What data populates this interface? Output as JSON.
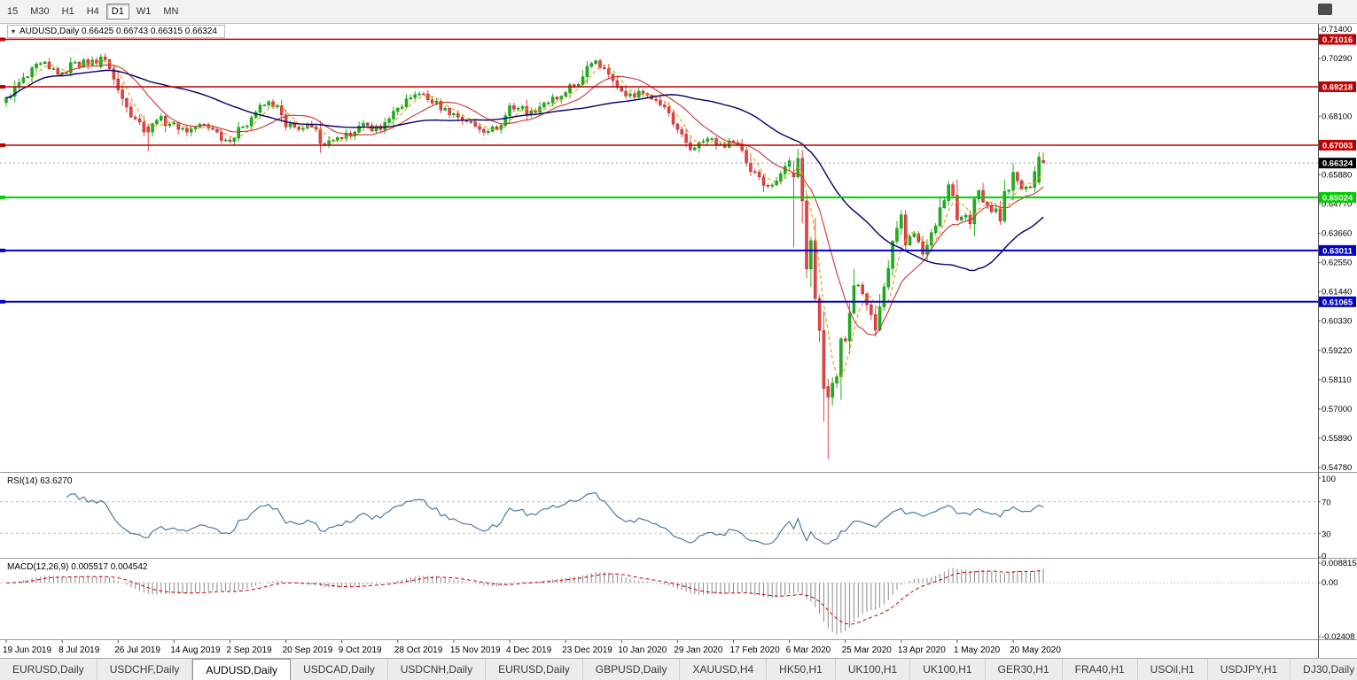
{
  "toolbar": {
    "timeframes": [
      {
        "label": "15",
        "active": false
      },
      {
        "label": "M30",
        "active": false
      },
      {
        "label": "H1",
        "active": false
      },
      {
        "label": "H4",
        "active": false
      },
      {
        "label": "D1",
        "active": true
      },
      {
        "label": "W1",
        "active": false
      },
      {
        "label": "MN",
        "active": false
      }
    ]
  },
  "chart": {
    "title": "AUDUSD,Daily  0.66425 0.66743 0.66315 0.66324"
  },
  "chart_data": {
    "type": "candlestick",
    "symbol": "AUDUSD",
    "timeframe": "Daily",
    "ohlc_current": {
      "open": "0.66425",
      "high": "0.66743",
      "low": "0.66315",
      "close": "0.66324"
    },
    "num_candles": 242,
    "price_axis": {
      "min": 0.5478,
      "max": 0.714,
      "ticks": [
        "0.71400",
        "0.70290",
        "0.68100",
        "0.65880",
        "0.64770",
        "0.63660",
        "0.62550",
        "0.61440",
        "0.60330",
        "0.59220",
        "0.58110",
        "0.57000",
        "0.55890",
        "0.54780"
      ]
    },
    "levels": [
      {
        "price": 0.71016,
        "label": "0.71016",
        "color": "#c00000",
        "width": 1.5
      },
      {
        "price": 0.69218,
        "label": "0.69218",
        "color": "#c00000",
        "width": 1.5
      },
      {
        "price": 0.67003,
        "label": "0.67003",
        "color": "#c00000",
        "width": 1.5
      },
      {
        "price": 0.65024,
        "label": "0.65024",
        "color": "#00cc00",
        "width": 2
      },
      {
        "price": 0.63011,
        "label": "0.63011",
        "color": "#0000cc",
        "width": 2
      },
      {
        "price": 0.61065,
        "label": "0.61065",
        "color": "#0000cc",
        "width": 2
      }
    ],
    "current_price": {
      "value": 0.66324,
      "label": "0.66324"
    },
    "colors": {
      "up": "#0d8a0d",
      "up_fill": "#1cb21c",
      "down": "#b02020",
      "down_fill": "#e54545"
    },
    "moving_averages": [
      {
        "period": 5,
        "color": "#e0a000",
        "dash": "4,3",
        "width": 1.1
      },
      {
        "period": 13,
        "color": "#cc3333",
        "width": 1.1
      },
      {
        "period": 40,
        "color": "#00006b",
        "width": 1.4
      }
    ],
    "close_anchors": [
      [
        0,
        0.688
      ],
      [
        2,
        0.692
      ],
      [
        5,
        0.696
      ],
      [
        8,
        0.701
      ],
      [
        10,
        0.699
      ],
      [
        13,
        0.6975
      ],
      [
        16,
        0.7015
      ],
      [
        19,
        0.7005
      ],
      [
        22,
        0.7035
      ],
      [
        24,
        0.699
      ],
      [
        26,
        0.691
      ],
      [
        28,
        0.6845
      ],
      [
        30,
        0.68
      ],
      [
        33,
        0.675
      ],
      [
        35,
        0.6795
      ],
      [
        39,
        0.6785
      ],
      [
        42,
        0.675
      ],
      [
        45,
        0.678
      ],
      [
        48,
        0.676
      ],
      [
        51,
        0.672
      ],
      [
        52,
        0.6715
      ],
      [
        55,
        0.677
      ],
      [
        58,
        0.6825
      ],
      [
        61,
        0.6865
      ],
      [
        63,
        0.685
      ],
      [
        65,
        0.677
      ],
      [
        68,
        0.676
      ],
      [
        71,
        0.677
      ],
      [
        74,
        0.67
      ],
      [
        76,
        0.672
      ],
      [
        78,
        0.6725
      ],
      [
        81,
        0.675
      ],
      [
        84,
        0.6775
      ],
      [
        87,
        0.676
      ],
      [
        89,
        0.68
      ],
      [
        91,
        0.684
      ],
      [
        94,
        0.688
      ],
      [
        96,
        0.6895
      ],
      [
        99,
        0.686
      ],
      [
        102,
        0.684
      ],
      [
        104,
        0.682
      ],
      [
        107,
        0.679
      ],
      [
        110,
        0.676
      ],
      [
        113,
        0.677
      ],
      [
        115,
        0.6775
      ],
      [
        117,
        0.685
      ],
      [
        119,
        0.684
      ],
      [
        122,
        0.683
      ],
      [
        125,
        0.686
      ],
      [
        128,
        0.6875
      ],
      [
        130,
        0.69
      ],
      [
        132,
        0.6925
      ],
      [
        134,
        0.696
      ],
      [
        136,
        0.701
      ],
      [
        137,
        0.702
      ],
      [
        139,
        0.699
      ],
      [
        141,
        0.6945
      ],
      [
        143,
        0.6905
      ],
      [
        145,
        0.6895
      ],
      [
        147,
        0.6905
      ],
      [
        149,
        0.689
      ],
      [
        151,
        0.687
      ],
      [
        153,
        0.6845
      ],
      [
        156,
        0.676
      ],
      [
        158,
        0.671
      ],
      [
        160,
        0.669
      ],
      [
        162,
        0.6715
      ],
      [
        164,
        0.6725
      ],
      [
        166,
        0.6705
      ],
      [
        169,
        0.671
      ],
      [
        171,
        0.668
      ],
      [
        173,
        0.66
      ],
      [
        175,
        0.658
      ],
      [
        177,
        0.6545
      ],
      [
        179,
        0.6565
      ],
      [
        181,
        0.662
      ],
      [
        182,
        0.6641
      ],
      [
        183,
        0.658
      ],
      [
        184,
        0.665
      ],
      [
        185,
        0.6489
      ],
      [
        186,
        0.6231
      ],
      [
        187,
        0.6338
      ],
      [
        188,
        0.6119
      ],
      [
        189,
        0.5998
      ],
      [
        190,
        0.5778
      ],
      [
        191,
        0.5745
      ],
      [
        192,
        0.5798
      ],
      [
        193,
        0.5822
      ],
      [
        194,
        0.5966
      ],
      [
        195,
        0.5958
      ],
      [
        196,
        0.6063
      ],
      [
        197,
        0.6167
      ],
      [
        198,
        0.617
      ],
      [
        199,
        0.6137
      ],
      [
        200,
        0.6095
      ],
      [
        201,
        0.6058
      ],
      [
        202,
        0.5999
      ],
      [
        203,
        0.6087
      ],
      [
        204,
        0.6163
      ],
      [
        205,
        0.6233
      ],
      [
        206,
        0.6336
      ],
      [
        207,
        0.6385
      ],
      [
        208,
        0.6436
      ],
      [
        209,
        0.6322
      ],
      [
        210,
        0.6353
      ],
      [
        211,
        0.6365
      ],
      [
        212,
        0.6334
      ],
      [
        213,
        0.6287
      ],
      [
        214,
        0.6321
      ],
      [
        215,
        0.6369
      ],
      [
        216,
        0.6394
      ],
      [
        217,
        0.6463
      ],
      [
        218,
        0.649
      ],
      [
        219,
        0.655
      ],
      [
        220,
        0.651
      ],
      [
        221,
        0.6417
      ],
      [
        222,
        0.6428
      ],
      [
        223,
        0.6434
      ],
      [
        224,
        0.6402
      ],
      [
        225,
        0.6496
      ],
      [
        226,
        0.6528
      ],
      [
        227,
        0.6485
      ],
      [
        228,
        0.6472
      ],
      [
        229,
        0.6448
      ],
      [
        230,
        0.6459
      ],
      [
        231,
        0.6413
      ],
      [
        232,
        0.6525
      ],
      [
        233,
        0.653
      ],
      [
        234,
        0.6597
      ],
      [
        235,
        0.6565
      ],
      [
        236,
        0.6535
      ],
      [
        237,
        0.6542
      ],
      [
        238,
        0.654
      ],
      [
        239,
        0.66
      ],
      [
        240,
        0.6655
      ],
      [
        241,
        0.66324
      ]
    ],
    "special_candles": {
      "22": [
        0.6998,
        0.7046,
        0.699,
        0.7035
      ],
      "33": [
        0.677,
        0.6778,
        0.6677,
        0.675
      ],
      "183": [
        0.6595,
        0.6641,
        0.6313,
        0.658
      ],
      "191": [
        0.5785,
        0.5815,
        0.551,
        0.5745
      ],
      "240": [
        0.656,
        0.6675,
        0.655,
        0.6655
      ],
      "241": [
        0.66425,
        0.66743,
        0.66315,
        0.66324
      ]
    },
    "x_axis": {
      "labels": [
        {
          "text": "19 Jun 2019",
          "idx": 0
        },
        {
          "text": "8 Jul 2019",
          "idx": 13
        },
        {
          "text": "26 Jul 2019",
          "idx": 26
        },
        {
          "text": "14 Aug 2019",
          "idx": 39
        },
        {
          "text": "2 Sep 2019",
          "idx": 52
        },
        {
          "text": "20 Sep 2019",
          "idx": 65
        },
        {
          "text": "9 Oct 2019",
          "idx": 78
        },
        {
          "text": "28 Oct 2019",
          "idx": 91
        },
        {
          "text": "15 Nov 2019",
          "idx": 104
        },
        {
          "text": "4 Dec 2019",
          "idx": 117
        },
        {
          "text": "23 Dec 2019",
          "idx": 130
        },
        {
          "text": "10 Jan 2020",
          "idx": 143
        },
        {
          "text": "29 Jan 2020",
          "idx": 156
        },
        {
          "text": "17 Feb 2020",
          "idx": 169
        },
        {
          "text": "6 Mar 2020",
          "idx": 182
        },
        {
          "text": "25 Mar 2020",
          "idx": 195
        },
        {
          "text": "13 Apr 2020",
          "idx": 208
        },
        {
          "text": "1 May 2020",
          "idx": 221
        },
        {
          "text": "20 May 2020",
          "idx": 234
        }
      ]
    },
    "rsi": {
      "label": "RSI(14) 63.6270",
      "period": 14,
      "value": 63.627,
      "line_color": "#3b6fa0",
      "levels": [
        100,
        70,
        30,
        0
      ],
      "axis_labels": [
        "100",
        "70",
        "30",
        "0"
      ]
    },
    "macd": {
      "label": "MACD(12,26,9) 0.005517 0.004542",
      "fast": 12,
      "slow": 26,
      "signal": 9,
      "value_macd": 0.005517,
      "value_signal": 0.004542,
      "max": 0.008815,
      "min": -0.02408,
      "axis_values": [
        {
          "v": 0.008815,
          "label": "0.008815"
        },
        {
          "v": 0,
          "label": "0.00"
        },
        {
          "v": -0.02408,
          "label": "-0.02408"
        }
      ]
    }
  },
  "tabs": {
    "items": [
      {
        "label": "EURUSD,Daily",
        "active": false
      },
      {
        "label": "USDCHF,Daily",
        "active": false
      },
      {
        "label": "AUDUSD,Daily",
        "active": true
      },
      {
        "label": "USDCAD,Daily",
        "active": false
      },
      {
        "label": "USDCNH,Daily",
        "active": false
      },
      {
        "label": "EURUSD,Daily",
        "active": false
      },
      {
        "label": "GBPUSD,Daily",
        "active": false
      },
      {
        "label": "XAUUSD,H4",
        "active": false
      },
      {
        "label": "HK50,H1",
        "active": false
      },
      {
        "label": "UK100,H1",
        "active": false
      },
      {
        "label": "UK100,H1",
        "active": false
      },
      {
        "label": "GER30,H1",
        "active": false
      },
      {
        "label": "FRA40,H1",
        "active": false
      },
      {
        "label": "USOil,H1",
        "active": false
      },
      {
        "label": "USDJPY,H1",
        "active": false
      },
      {
        "label": "DJ30,Daily",
        "active": false
      }
    ]
  }
}
